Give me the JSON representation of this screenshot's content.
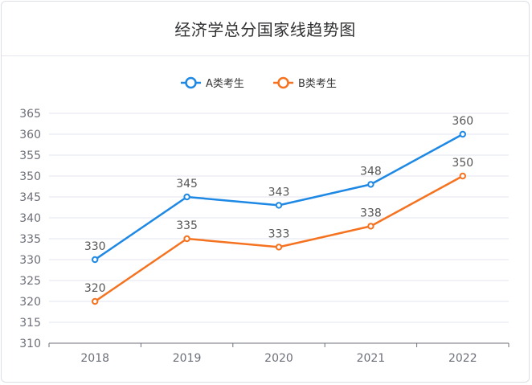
{
  "title": "经济学总分国家线趋势图",
  "chart_data": {
    "type": "line",
    "title": "经济学总分国家线趋势图",
    "categories": [
      "2018",
      "2019",
      "2020",
      "2021",
      "2022"
    ],
    "series": [
      {
        "name": "A类考生",
        "color": "#1e88e5",
        "values": [
          330,
          345,
          343,
          348,
          360
        ]
      },
      {
        "name": "B类考生",
        "color": "#f57320",
        "values": [
          320,
          335,
          333,
          338,
          350
        ]
      }
    ],
    "ylim": [
      310,
      365
    ],
    "yticks": [
      310,
      315,
      320,
      325,
      330,
      335,
      340,
      345,
      350,
      355,
      360,
      365
    ],
    "grid": true,
    "legend": "top-center",
    "xlabel": "",
    "ylabel": ""
  }
}
